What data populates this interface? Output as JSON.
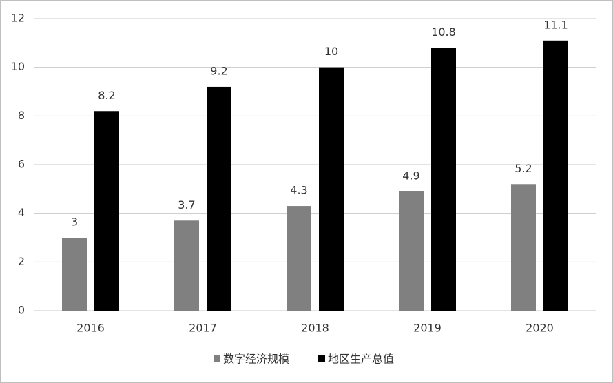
{
  "chart_data": {
    "type": "bar",
    "categories": [
      "2016",
      "2017",
      "2018",
      "2019",
      "2020"
    ],
    "series": [
      {
        "name": "数字经济规模",
        "color": "#808080",
        "values": [
          3,
          3.7,
          4.3,
          4.9,
          5.2
        ]
      },
      {
        "name": "地区生产总值",
        "color": "#000000",
        "values": [
          8.2,
          9.2,
          10,
          10.8,
          11.1
        ]
      }
    ],
    "ylim": [
      0,
      12
    ],
    "yticks": [
      0,
      2,
      4,
      6,
      8,
      10,
      12
    ],
    "grid": true,
    "legend": "bottom"
  }
}
